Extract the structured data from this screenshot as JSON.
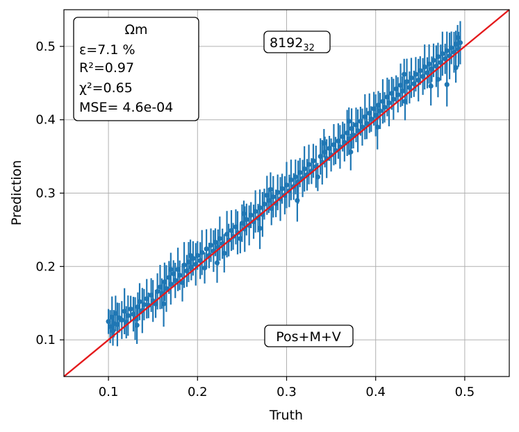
{
  "chart_data": {
    "type": "scatter",
    "title": "",
    "xlabel": "Truth",
    "ylabel": "Prediction",
    "xlim": [
      0.05,
      0.55
    ],
    "ylim": [
      0.05,
      0.55
    ],
    "xticks": [
      "0.1",
      "0.2",
      "0.3",
      "0.4",
      "0.5"
    ],
    "yticks": [
      "0.1",
      "0.2",
      "0.3",
      "0.4",
      "0.5"
    ],
    "grid": true,
    "reference_line": {
      "x": [
        0.05,
        0.55
      ],
      "y": [
        0.05,
        0.55
      ],
      "color": "#e41a1c"
    },
    "series_color": "#1f77b4",
    "error_bar_range": [
      0.017,
      0.032
    ],
    "points": [
      [
        0.1,
        0.125
      ],
      [
        0.102,
        0.118
      ],
      [
        0.104,
        0.131
      ],
      [
        0.106,
        0.122
      ],
      [
        0.108,
        0.136
      ],
      [
        0.11,
        0.121
      ],
      [
        0.112,
        0.13
      ],
      [
        0.115,
        0.127
      ],
      [
        0.118,
        0.139
      ],
      [
        0.12,
        0.124
      ],
      [
        0.122,
        0.133
      ],
      [
        0.125,
        0.142
      ],
      [
        0.128,
        0.135
      ],
      [
        0.13,
        0.129
      ],
      [
        0.133,
        0.145
      ],
      [
        0.135,
        0.152
      ],
      [
        0.138,
        0.14
      ],
      [
        0.14,
        0.148
      ],
      [
        0.143,
        0.156
      ],
      [
        0.145,
        0.147
      ],
      [
        0.148,
        0.161
      ],
      [
        0.15,
        0.153
      ],
      [
        0.153,
        0.149
      ],
      [
        0.155,
        0.166
      ],
      [
        0.158,
        0.172
      ],
      [
        0.16,
        0.163
      ],
      [
        0.163,
        0.179
      ],
      [
        0.165,
        0.17
      ],
      [
        0.168,
        0.185
      ],
      [
        0.17,
        0.176
      ],
      [
        0.173,
        0.19
      ],
      [
        0.175,
        0.181
      ],
      [
        0.178,
        0.196
      ],
      [
        0.18,
        0.188
      ],
      [
        0.183,
        0.178
      ],
      [
        0.185,
        0.202
      ],
      [
        0.188,
        0.194
      ],
      [
        0.19,
        0.206
      ],
      [
        0.193,
        0.199
      ],
      [
        0.195,
        0.211
      ],
      [
        0.198,
        0.203
      ],
      [
        0.2,
        0.215
      ],
      [
        0.203,
        0.208
      ],
      [
        0.205,
        0.219
      ],
      [
        0.208,
        0.198
      ],
      [
        0.21,
        0.224
      ],
      [
        0.213,
        0.215
      ],
      [
        0.215,
        0.229
      ],
      [
        0.218,
        0.221
      ],
      [
        0.22,
        0.233
      ],
      [
        0.223,
        0.226
      ],
      [
        0.225,
        0.238
      ],
      [
        0.228,
        0.231
      ],
      [
        0.23,
        0.218
      ],
      [
        0.233,
        0.244
      ],
      [
        0.235,
        0.236
      ],
      [
        0.238,
        0.249
      ],
      [
        0.24,
        0.241
      ],
      [
        0.243,
        0.254
      ],
      [
        0.245,
        0.246
      ],
      [
        0.248,
        0.238
      ],
      [
        0.25,
        0.259
      ],
      [
        0.253,
        0.251
      ],
      [
        0.255,
        0.264
      ],
      [
        0.258,
        0.256
      ],
      [
        0.26,
        0.27
      ],
      [
        0.263,
        0.261
      ],
      [
        0.265,
        0.275
      ],
      [
        0.268,
        0.266
      ],
      [
        0.27,
        0.28
      ],
      [
        0.273,
        0.271
      ],
      [
        0.275,
        0.285
      ],
      [
        0.278,
        0.297
      ],
      [
        0.28,
        0.29
      ],
      [
        0.283,
        0.279
      ],
      [
        0.285,
        0.295
      ],
      [
        0.288,
        0.286
      ],
      [
        0.29,
        0.301
      ],
      [
        0.293,
        0.292
      ],
      [
        0.295,
        0.306
      ],
      [
        0.298,
        0.297
      ],
      [
        0.3,
        0.311
      ],
      [
        0.303,
        0.303
      ],
      [
        0.305,
        0.318
      ],
      [
        0.308,
        0.309
      ],
      [
        0.31,
        0.322
      ],
      [
        0.313,
        0.315
      ],
      [
        0.315,
        0.328
      ],
      [
        0.318,
        0.32
      ],
      [
        0.32,
        0.333
      ],
      [
        0.323,
        0.325
      ],
      [
        0.325,
        0.339
      ],
      [
        0.328,
        0.33
      ],
      [
        0.33,
        0.344
      ],
      [
        0.333,
        0.336
      ],
      [
        0.335,
        0.322
      ],
      [
        0.338,
        0.35
      ],
      [
        0.34,
        0.342
      ],
      [
        0.343,
        0.356
      ],
      [
        0.345,
        0.347
      ],
      [
        0.348,
        0.361
      ],
      [
        0.35,
        0.352
      ],
      [
        0.353,
        0.366
      ],
      [
        0.355,
        0.358
      ],
      [
        0.358,
        0.371
      ],
      [
        0.36,
        0.363
      ],
      [
        0.363,
        0.377
      ],
      [
        0.365,
        0.369
      ],
      [
        0.368,
        0.382
      ],
      [
        0.37,
        0.374
      ],
      [
        0.373,
        0.388
      ],
      [
        0.375,
        0.379
      ],
      [
        0.378,
        0.393
      ],
      [
        0.38,
        0.385
      ],
      [
        0.383,
        0.398
      ],
      [
        0.385,
        0.39
      ],
      [
        0.388,
        0.404
      ],
      [
        0.39,
        0.395
      ],
      [
        0.393,
        0.409
      ],
      [
        0.395,
        0.401
      ],
      [
        0.398,
        0.415
      ],
      [
        0.4,
        0.406
      ],
      [
        0.403,
        0.42
      ],
      [
        0.405,
        0.412
      ],
      [
        0.408,
        0.425
      ],
      [
        0.41,
        0.417
      ],
      [
        0.413,
        0.431
      ],
      [
        0.415,
        0.423
      ],
      [
        0.418,
        0.436
      ],
      [
        0.42,
        0.428
      ],
      [
        0.423,
        0.442
      ],
      [
        0.425,
        0.434
      ],
      [
        0.428,
        0.447
      ],
      [
        0.43,
        0.439
      ],
      [
        0.433,
        0.425
      ],
      [
        0.435,
        0.452
      ],
      [
        0.438,
        0.444
      ],
      [
        0.44,
        0.457
      ],
      [
        0.443,
        0.449
      ],
      [
        0.445,
        0.462
      ],
      [
        0.448,
        0.454
      ],
      [
        0.45,
        0.467
      ],
      [
        0.453,
        0.459
      ],
      [
        0.455,
        0.472
      ],
      [
        0.458,
        0.464
      ],
      [
        0.46,
        0.476
      ],
      [
        0.463,
        0.469
      ],
      [
        0.465,
        0.481
      ],
      [
        0.468,
        0.473
      ],
      [
        0.47,
        0.486
      ],
      [
        0.473,
        0.478
      ],
      [
        0.475,
        0.49
      ],
      [
        0.478,
        0.483
      ],
      [
        0.48,
        0.494
      ],
      [
        0.483,
        0.487
      ],
      [
        0.485,
        0.498
      ],
      [
        0.488,
        0.492
      ],
      [
        0.49,
        0.503
      ],
      [
        0.493,
        0.496
      ],
      [
        0.495,
        0.505
      ],
      [
        0.105,
        0.112
      ],
      [
        0.132,
        0.12
      ],
      [
        0.162,
        0.149
      ],
      [
        0.192,
        0.215
      ],
      [
        0.222,
        0.205
      ],
      [
        0.252,
        0.272
      ],
      [
        0.282,
        0.305
      ],
      [
        0.312,
        0.29
      ],
      [
        0.342,
        0.368
      ],
      [
        0.372,
        0.356
      ],
      [
        0.402,
        0.39
      ],
      [
        0.432,
        0.462
      ],
      [
        0.462,
        0.446
      ],
      [
        0.492,
        0.512
      ],
      [
        0.17,
        0.196
      ],
      [
        0.27,
        0.252
      ],
      [
        0.37,
        0.398
      ],
      [
        0.47,
        0.455
      ],
      [
        0.48,
        0.448
      ],
      [
        0.49,
        0.471
      ]
    ],
    "stats_box": {
      "heading": "Ωm",
      "lines": [
        "ε=7.1 %",
        "R²=0.97",
        "χ²=0.65",
        "MSE= 4.6e-04"
      ]
    },
    "tags": {
      "top": "8192",
      "top_subscript": "32",
      "bottom": "Pos+M+V"
    }
  }
}
